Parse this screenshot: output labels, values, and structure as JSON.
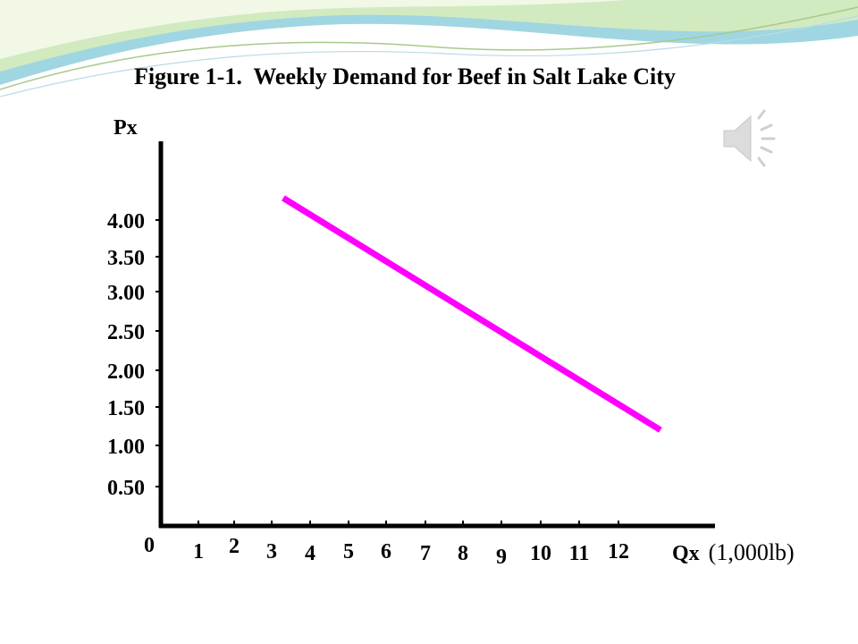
{
  "slide": {
    "background": "#ffffff",
    "decor_colors": [
      "#8fd0de",
      "#cde9b4",
      "#eef6df",
      "#a8c98a"
    ]
  },
  "speaker_icon": "speaker-icon",
  "chart_data": {
    "type": "line",
    "title": "Figure 1-1.  Weekly Demand for Beef in Salt Lake City",
    "ylabel": "Px",
    "xlabel_bold": "Qx",
    "xlabel_unit": "(1,000lb)",
    "origin_label": "0",
    "x_ticks": [
      1,
      2,
      3,
      4,
      5,
      6,
      7,
      8,
      9,
      10,
      11,
      12
    ],
    "x_tick_labels": [
      "1",
      "2",
      "3",
      "4",
      "5",
      "6",
      "7",
      "8",
      "9",
      "10",
      "11",
      "12"
    ],
    "y_ticks": [
      0.5,
      1.0,
      1.5,
      2.0,
      2.5,
      3.0,
      3.5,
      4.0
    ],
    "y_tick_labels": [
      "0.50",
      "1.00",
      "1.50",
      "2.00",
      "2.50",
      "3.00",
      "3.50",
      "4.00"
    ],
    "xlim": [
      0,
      14.5
    ],
    "ylim": [
      0,
      5
    ],
    "series": [
      {
        "color": "#ff00ff",
        "x": [
          3.3,
          13.2
        ],
        "y": [
          4.3,
          1.2
        ]
      }
    ],
    "grid": false,
    "legend": "none"
  }
}
